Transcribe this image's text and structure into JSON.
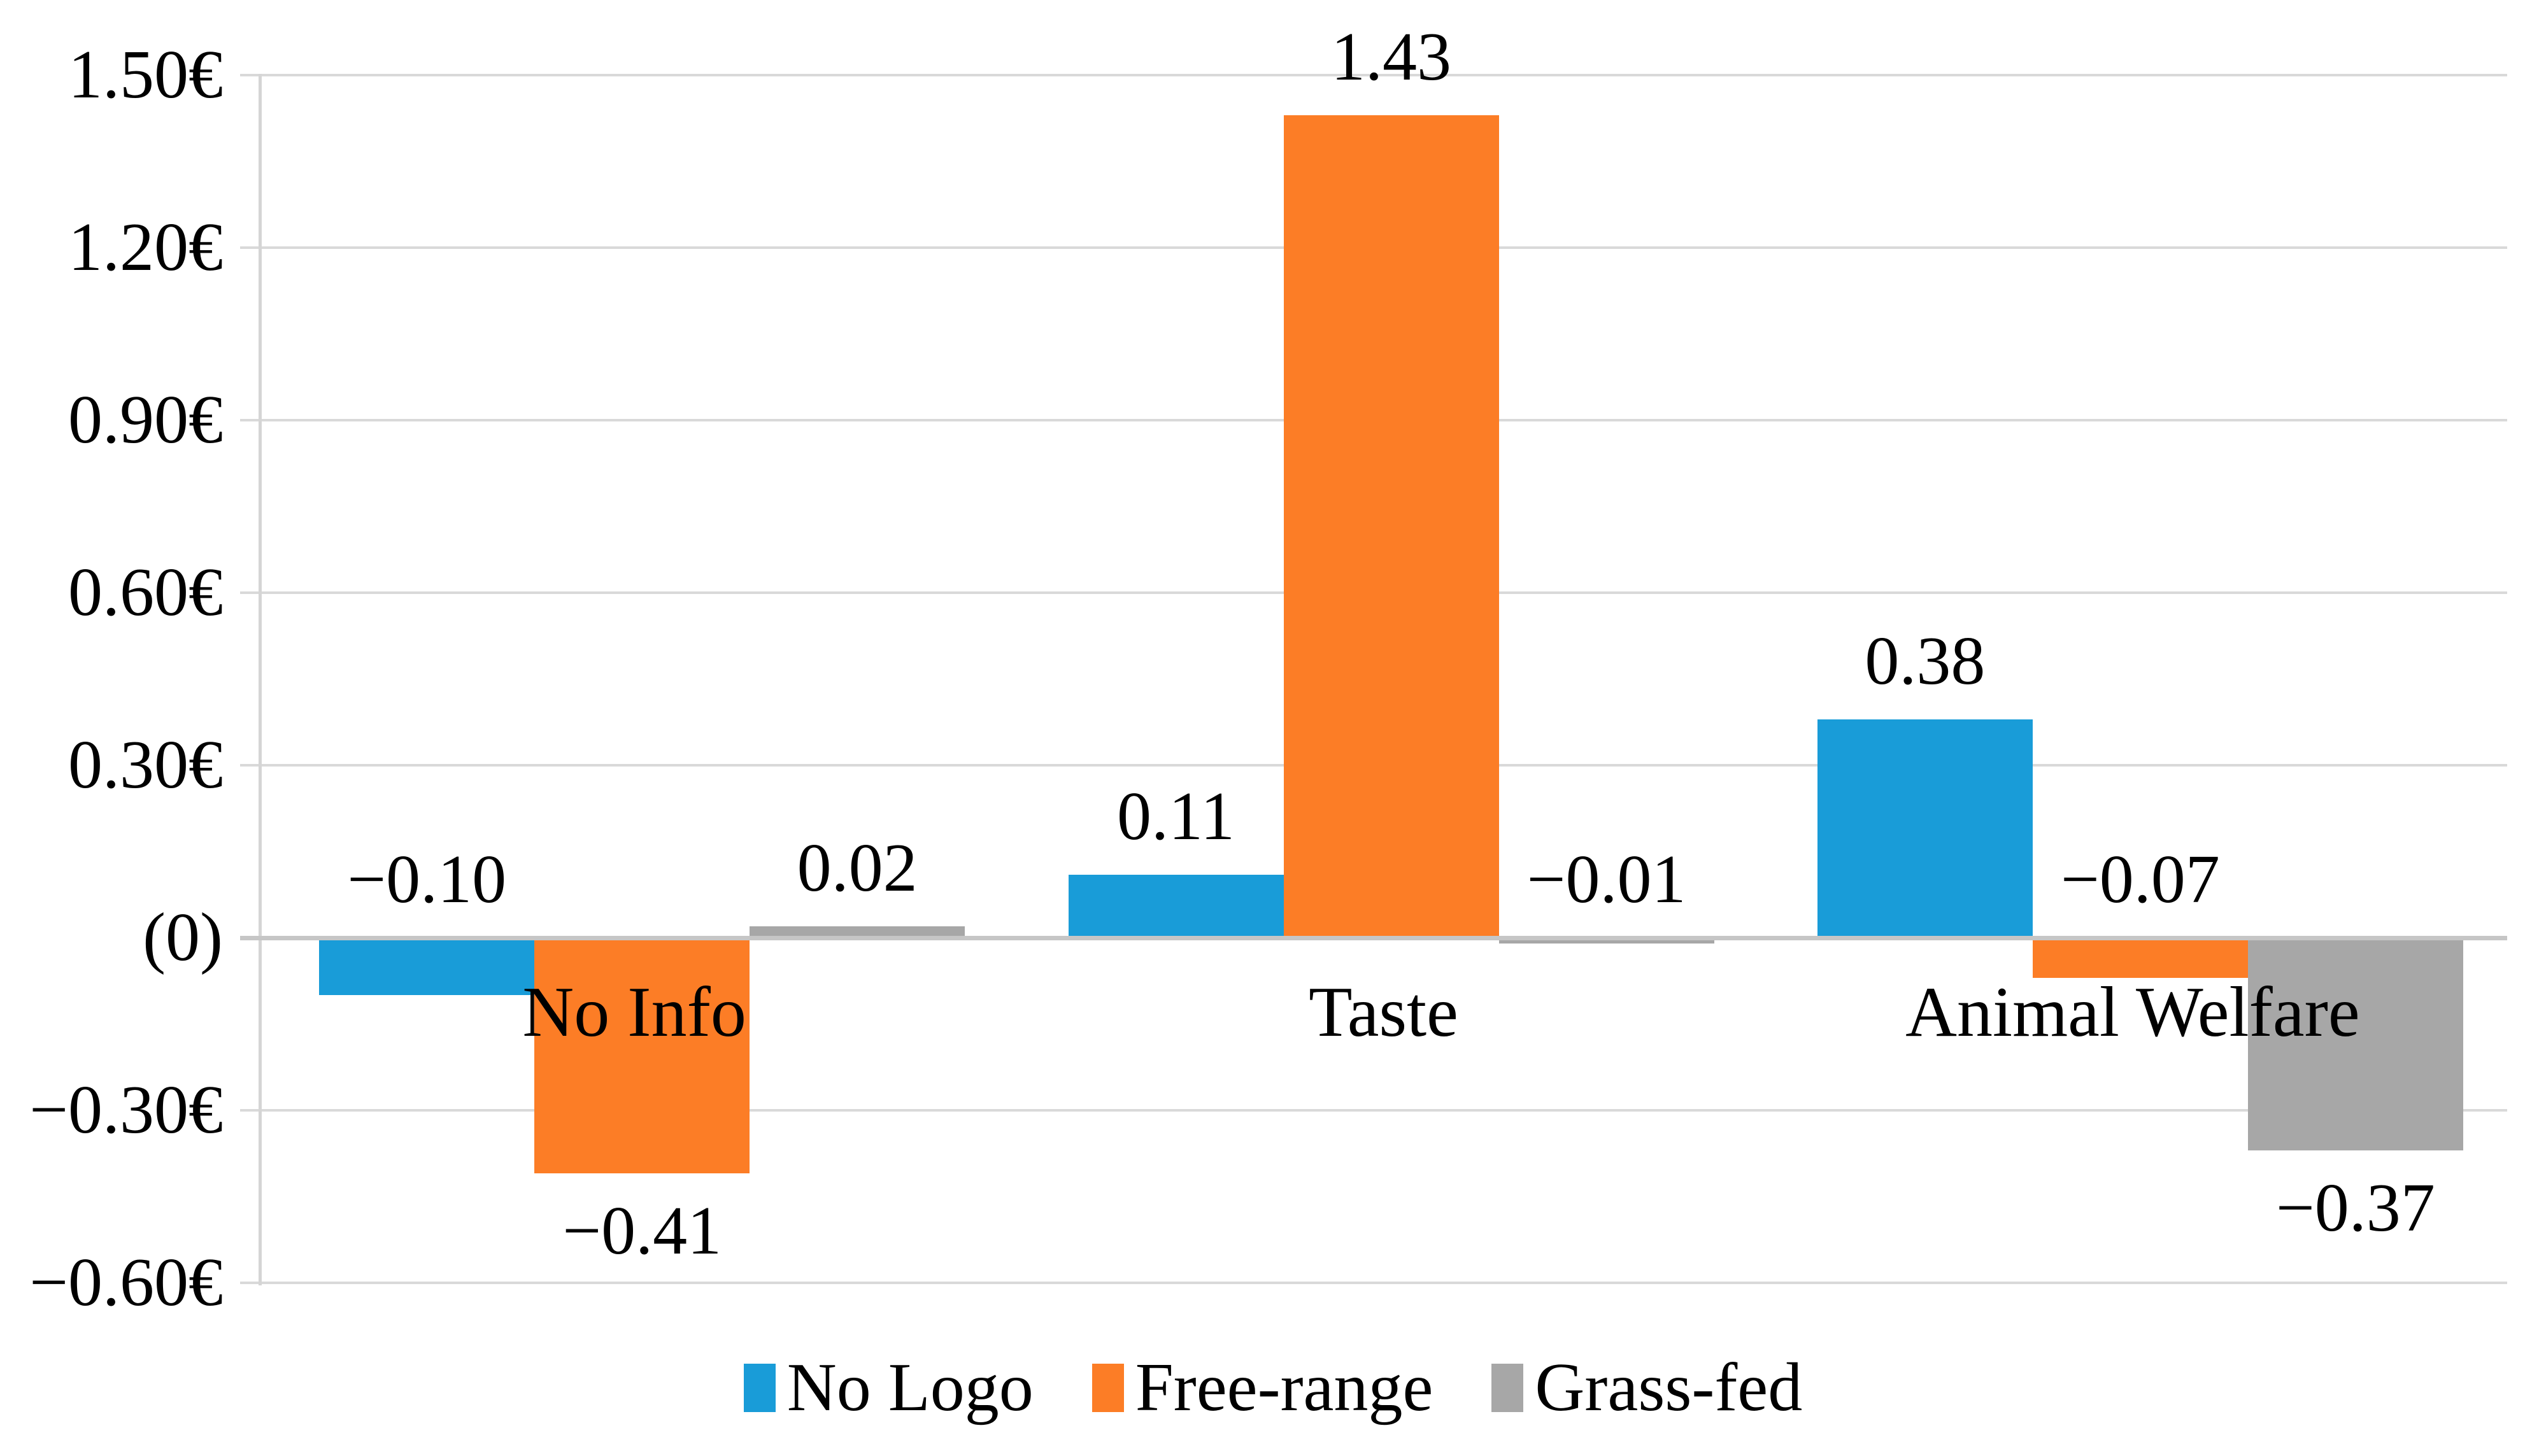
{
  "chart_data": {
    "type": "bar",
    "title": "",
    "xlabel": "",
    "ylabel": "",
    "categories": [
      "No Info",
      "Taste",
      "Animal Welfare"
    ],
    "series": [
      {
        "name": "No Logo",
        "color": "#199CD8",
        "values": [
          -0.1,
          0.11,
          0.38
        ]
      },
      {
        "name": "Free-range",
        "color": "#FC7D26",
        "values": [
          -0.41,
          1.43,
          -0.07
        ]
      },
      {
        "name": "Grass-fed",
        "color": "#A7A7A7",
        "values": [
          0.02,
          -0.01,
          -0.37
        ]
      }
    ],
    "data_labels": [
      {
        "series": "No Logo",
        "items": [
          {
            "text": "−0.10",
            "placement": "above-axis"
          },
          {
            "text": "0.11",
            "placement": "above-bar"
          },
          {
            "text": "0.38",
            "placement": "above-bar"
          }
        ]
      },
      {
        "series": "Free-range",
        "items": [
          {
            "text": "−0.41",
            "placement": "below-bar"
          },
          {
            "text": "1.43",
            "placement": "above-bar"
          },
          {
            "text": "−0.07",
            "placement": "above-axis"
          }
        ]
      },
      {
        "series": "Grass-fed",
        "items": [
          {
            "text": "0.02",
            "placement": "above-bar"
          },
          {
            "text": "−0.01",
            "placement": "above-axis"
          },
          {
            "text": "−0.37",
            "placement": "below-bar"
          }
        ]
      }
    ],
    "y_axis": {
      "ylim": [
        -0.6,
        1.5
      ],
      "tick_step": 0.3,
      "ticks": [
        {
          "label": "1.50€",
          "value": 1.5
        },
        {
          "label": "1.20€",
          "value": 1.2
        },
        {
          "label": "0.90€",
          "value": 0.9
        },
        {
          "label": "0.60€",
          "value": 0.6
        },
        {
          "label": "0.30€",
          "value": 0.3
        },
        {
          "label": "(0)",
          "value": 0.0
        },
        {
          "label": "−0.30€",
          "value": -0.3
        },
        {
          "label": "−0.60€",
          "value": -0.6
        }
      ]
    },
    "grid": true,
    "legend": {
      "position": "bottom",
      "entries": [
        "No Logo",
        "Free-range",
        "Grass-fed"
      ]
    }
  },
  "colors": {
    "background": "#FFFFFF",
    "gridline": "#D9D9D9",
    "zero_line": "#C6C6C6",
    "axis_line": "#D5D5D5",
    "text": "#000000"
  }
}
